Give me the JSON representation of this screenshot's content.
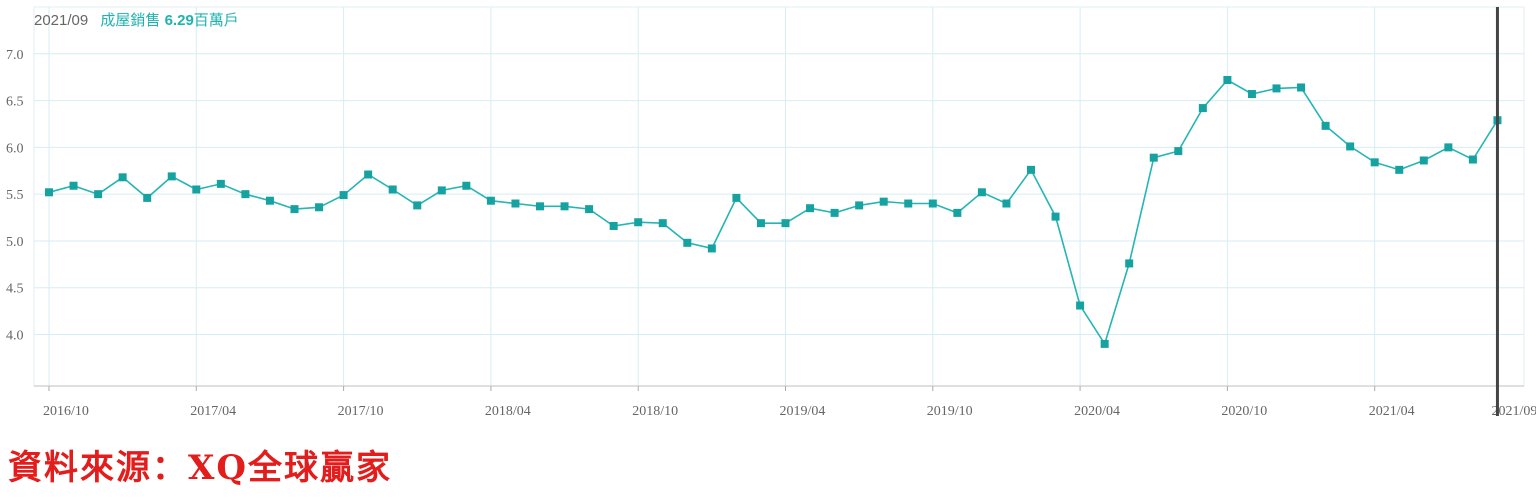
{
  "chart_data": {
    "type": "line",
    "legend": {
      "date": "2021/09",
      "series_label": "成屋銷售",
      "value": "6.29",
      "unit": "百萬戶"
    },
    "y_ticks": [
      "7.0",
      "6.5",
      "6.0",
      "5.5",
      "5.0",
      "4.5",
      "4.0"
    ],
    "ylim": [
      3.45,
      7.5
    ],
    "x_ticks": [
      {
        "label": "2016/10",
        "index": 0
      },
      {
        "label": "2017/04",
        "index": 6
      },
      {
        "label": "2017/10",
        "index": 12
      },
      {
        "label": "2018/04",
        "index": 18
      },
      {
        "label": "2018/10",
        "index": 24
      },
      {
        "label": "2019/04",
        "index": 30
      },
      {
        "label": "2019/10",
        "index": 36
      },
      {
        "label": "2020/04",
        "index": 42
      },
      {
        "label": "2020/10",
        "index": 48
      },
      {
        "label": "2021/04",
        "index": 54
      },
      {
        "label": "2021/09",
        "index": 59
      }
    ],
    "x": [
      "2016/10",
      "2016/11",
      "2016/12",
      "2017/01",
      "2017/02",
      "2017/03",
      "2017/04",
      "2017/05",
      "2017/06",
      "2017/07",
      "2017/08",
      "2017/09",
      "2017/10",
      "2017/11",
      "2017/12",
      "2018/01",
      "2018/02",
      "2018/03",
      "2018/04",
      "2018/05",
      "2018/06",
      "2018/07",
      "2018/08",
      "2018/09",
      "2018/10",
      "2018/11",
      "2018/12",
      "2019/01",
      "2019/02",
      "2019/03",
      "2019/04",
      "2019/05",
      "2019/06",
      "2019/07",
      "2019/08",
      "2019/09",
      "2019/10",
      "2019/11",
      "2019/12",
      "2020/01",
      "2020/02",
      "2020/03",
      "2020/04",
      "2020/05",
      "2020/06",
      "2020/07",
      "2020/08",
      "2020/09",
      "2020/10",
      "2020/11",
      "2020/12",
      "2021/01",
      "2021/02",
      "2021/03",
      "2021/04",
      "2021/05",
      "2021/06",
      "2021/07",
      "2021/08",
      "2021/09"
    ],
    "values": [
      5.52,
      5.59,
      5.5,
      5.68,
      5.46,
      5.69,
      5.55,
      5.61,
      5.5,
      5.43,
      5.34,
      5.36,
      5.49,
      5.71,
      5.55,
      5.38,
      5.54,
      5.59,
      5.43,
      5.4,
      5.37,
      5.37,
      5.34,
      5.16,
      5.2,
      5.19,
      4.98,
      4.92,
      5.46,
      5.19,
      5.19,
      5.35,
      5.3,
      5.38,
      5.42,
      5.4,
      5.4,
      5.3,
      5.52,
      5.4,
      5.76,
      5.26,
      4.31,
      3.9,
      4.76,
      5.89,
      5.96,
      6.42,
      6.72,
      6.57,
      6.63,
      6.64,
      6.23,
      6.01,
      5.84,
      5.76,
      5.86,
      6.0,
      5.87,
      6.29
    ],
    "colors": {
      "line": "#26b5b5",
      "marker": "#17a2a2",
      "legend_series": "#1fb3b0",
      "grid": "#d6eef3",
      "cursor": "#444444",
      "axis_text": "#666666",
      "source_text": "#e31c1c"
    }
  },
  "source": "資料來源：XQ全球贏家"
}
